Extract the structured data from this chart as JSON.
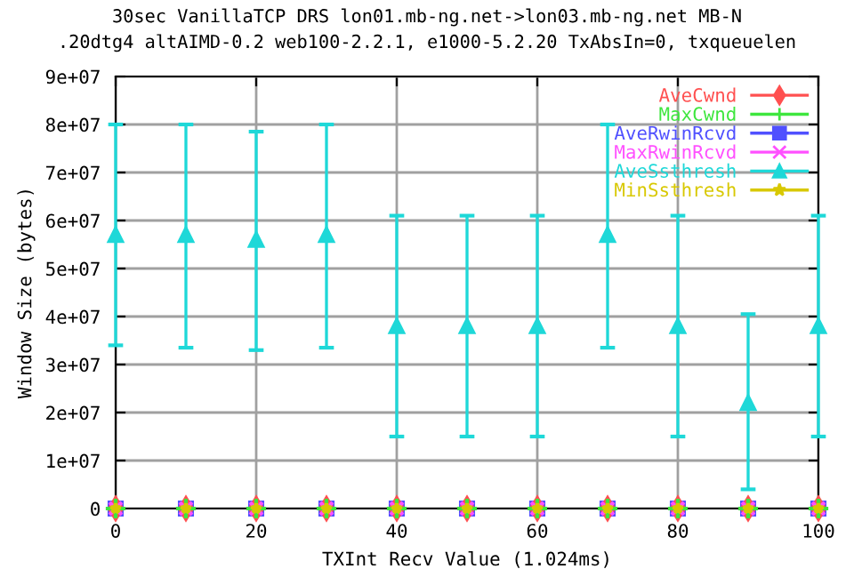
{
  "chart_data": {
    "type": "scatter",
    "title": "30sec VanillaTCP DRS lon01.mb-ng.net->lon03.mb-ng.net MB-N",
    "subtitle": ".20dtg4 altAIMD-0.2 web100-2.2.1, e1000-5.2.20 TxAbsIn=0, txqueuelen",
    "xlabel": "TXInt Recv Value (1.024ms)",
    "ylabel": "Window Size (bytes)",
    "x": [
      0,
      10,
      20,
      30,
      40,
      50,
      60,
      70,
      80,
      90,
      100
    ],
    "series": [
      {
        "name": "AveCwnd",
        "color": "#ff5050",
        "marker": "diamond",
        "values": [
          0,
          0,
          0,
          0,
          0,
          0,
          0,
          0,
          0,
          0,
          0
        ]
      },
      {
        "name": "MaxCwnd",
        "color": "#3ee63e",
        "marker": "plus",
        "values": [
          0,
          0,
          0,
          0,
          0,
          0,
          0,
          0,
          0,
          0,
          0
        ]
      },
      {
        "name": "AveRwinRcvd",
        "color": "#5050ff",
        "marker": "square",
        "values": [
          0,
          0,
          0,
          0,
          0,
          0,
          0,
          0,
          0,
          0,
          0
        ]
      },
      {
        "name": "MaxRwinRcvd",
        "color": "#ff50ff",
        "marker": "cross",
        "values": [
          0,
          0,
          0,
          0,
          0,
          0,
          0,
          0,
          0,
          0,
          0
        ]
      },
      {
        "name": "AveSsthresh",
        "color": "#1ed8d8",
        "marker": "triangle",
        "values": [
          57000000.0,
          57000000.0,
          56000000.0,
          57000000.0,
          38000000.0,
          38000000.0,
          38000000.0,
          57000000.0,
          38000000.0,
          22000000.0,
          38000000.0
        ],
        "errors": [
          [
            34000000.0,
            80000000.0
          ],
          [
            33500000.0,
            80000000.0
          ],
          [
            33000000.0,
            78500000.0
          ],
          [
            33500000.0,
            80000000.0
          ],
          [
            15000000.0,
            61000000.0
          ],
          [
            15000000.0,
            61000000.0
          ],
          [
            15000000.0,
            61000000.0
          ],
          [
            33500000.0,
            80000000.0
          ],
          [
            15000000.0,
            61000000.0
          ],
          [
            4000000.0,
            40500000.0
          ],
          [
            15000000.0,
            61000000.0
          ]
        ]
      },
      {
        "name": "MinSsthresh",
        "color": "#d8c800",
        "marker": "star",
        "values": [
          0,
          0,
          0,
          0,
          0,
          0,
          0,
          0,
          0,
          0,
          0
        ]
      }
    ],
    "xlim": [
      0,
      100
    ],
    "xticks": [
      0,
      20,
      40,
      60,
      80,
      100
    ],
    "ylim": [
      0,
      90000000.0
    ],
    "yticks": [
      0,
      {
        "value": 10000000.0,
        "label": "1e+07"
      },
      {
        "value": 20000000.0,
        "label": "2e+07"
      },
      {
        "value": 30000000.0,
        "label": "3e+07"
      },
      {
        "value": 40000000.0,
        "label": "4e+07"
      },
      {
        "value": 50000000.0,
        "label": "5e+07"
      },
      {
        "value": 60000000.0,
        "label": "6e+07"
      },
      {
        "value": 70000000.0,
        "label": "7e+07"
      },
      {
        "value": 80000000.0,
        "label": "8e+07"
      },
      {
        "value": 90000000.0,
        "label": "9e+07"
      }
    ],
    "grid": true,
    "legend": "top right"
  }
}
